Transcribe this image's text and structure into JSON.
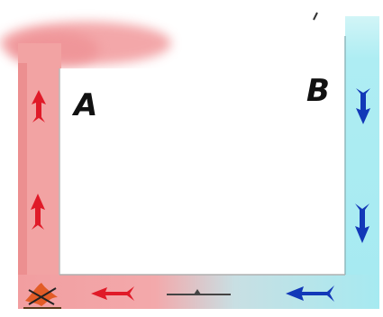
{
  "labels": {
    "left": "A",
    "right": "B"
  },
  "colors": {
    "warm_pipe": "#f2a3a3",
    "warm_pipe_dark": "#e77f82",
    "cool_pipe": "#a9ecf2",
    "cool_pipe_light": "#c9f3f6",
    "warm_arrow": "#e01a28",
    "cool_arrow": "#1238b8",
    "heater": "#e0541a",
    "valve": "#444444"
  },
  "icons": {
    "warm_arrow": "arrow-up-icon",
    "cool_arrow": "arrow-down-icon",
    "bottom_warm_arrow": "arrow-left-icon",
    "bottom_cool_arrow": "arrow-left-icon",
    "heater": "flame-icon",
    "valve": "valve-icon"
  }
}
